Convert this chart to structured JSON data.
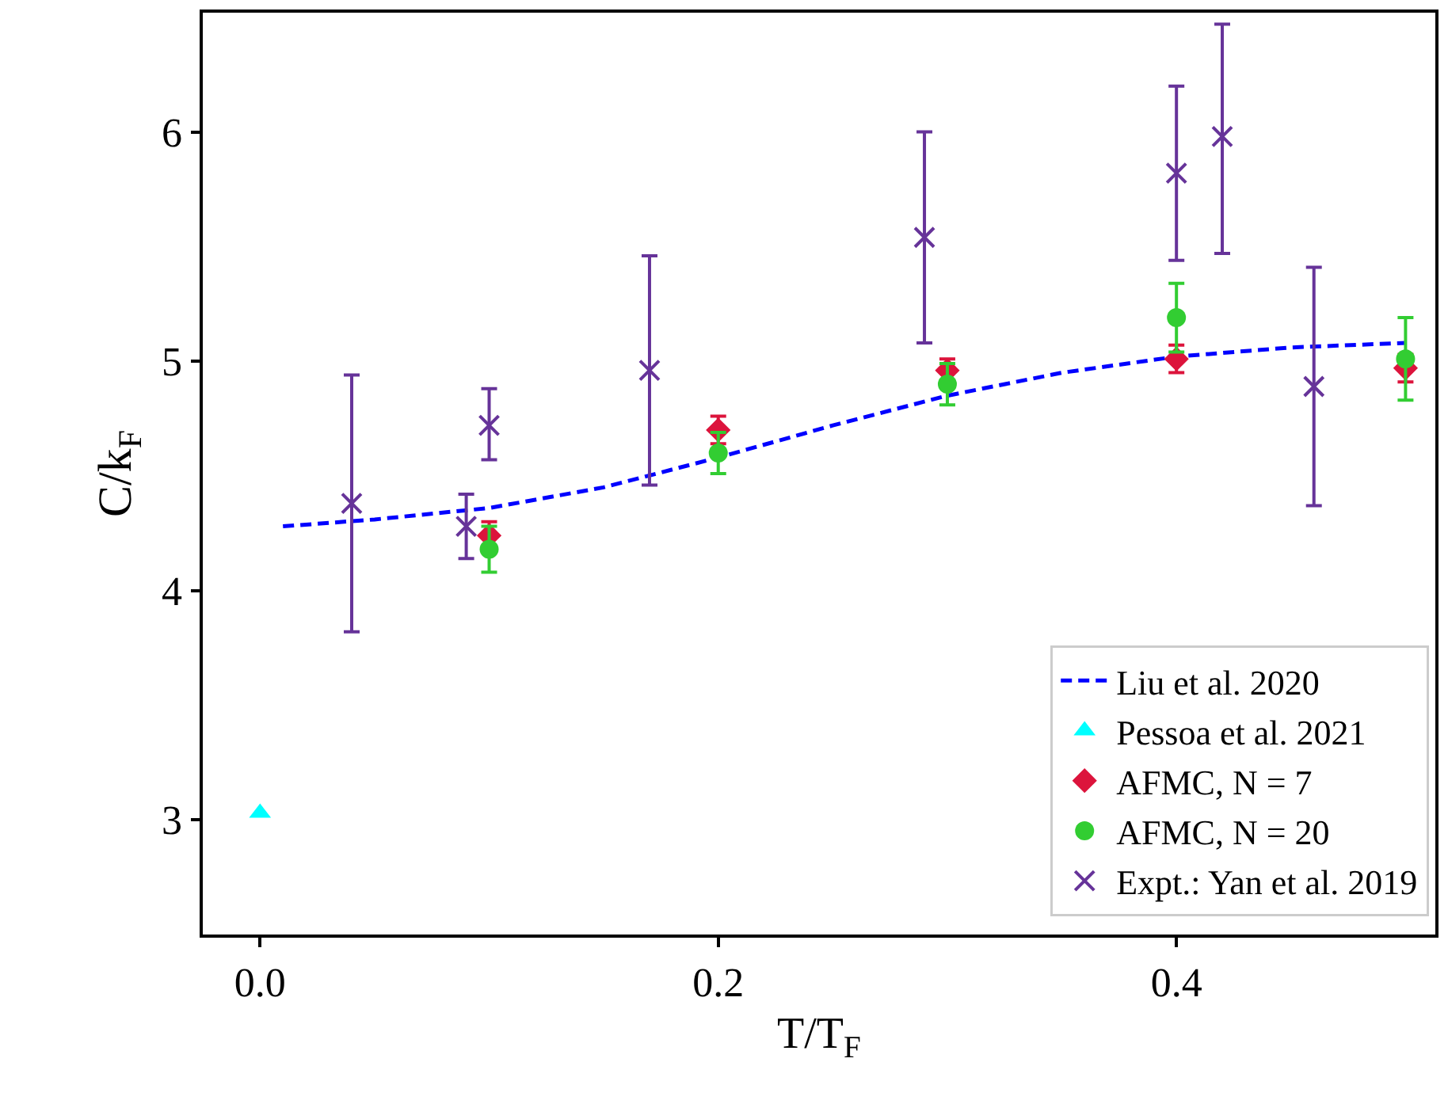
{
  "chart_data": {
    "type": "scatter",
    "xlabel": "T/T$_{F}$",
    "ylabel": "C/k$_{F}$",
    "xlim": [
      -0.025,
      0.513
    ],
    "ylim": [
      2.5,
      6.52
    ],
    "xticks": [
      {
        "value": 0.0,
        "label": "0.0"
      },
      {
        "value": 0.2,
        "label": "0.2"
      },
      {
        "value": 0.4,
        "label": "0.4"
      }
    ],
    "yticks": [
      3,
      4,
      5,
      6
    ],
    "legend": "bottom right",
    "series": [
      {
        "name": "Liu et al. 2020",
        "type": "line",
        "color": "#0000ff",
        "line_style": "dashed",
        "marker": "none",
        "x": [
          0.01,
          0.05,
          0.1,
          0.15,
          0.2,
          0.25,
          0.3,
          0.35,
          0.4,
          0.45,
          0.5
        ],
        "values": [
          4.28,
          4.31,
          4.36,
          4.45,
          4.58,
          4.72,
          4.85,
          4.95,
          5.02,
          5.06,
          5.08
        ]
      },
      {
        "name": "Pessoa et al. 2021",
        "color": "#00ffff",
        "marker": "triangle",
        "x": [
          0.0
        ],
        "values": [
          3.03
        ]
      },
      {
        "name": "AFMC, N = 7",
        "color": "#dc143c",
        "marker": "diamond",
        "x": [
          0.1,
          0.2,
          0.3,
          0.4,
          0.5
        ],
        "values": [
          4.24,
          4.7,
          4.96,
          5.01,
          4.97
        ],
        "errors": [
          0.06,
          0.06,
          0.05,
          0.06,
          0.06
        ]
      },
      {
        "name": "AFMC, N = 20",
        "color": "#32cd32",
        "marker": "circle",
        "x": [
          0.1,
          0.2,
          0.3,
          0.4,
          0.5
        ],
        "values": [
          4.18,
          4.6,
          4.9,
          5.19,
          5.01
        ],
        "errors": [
          0.1,
          0.09,
          0.09,
          0.15,
          0.18
        ]
      },
      {
        "name": "Expt.: Yan et al. 2019",
        "color": "#663399",
        "marker": "cross",
        "x": [
          0.04,
          0.09,
          0.1,
          0.17,
          0.29,
          0.4,
          0.42,
          0.46
        ],
        "values": [
          4.38,
          4.28,
          4.72,
          4.96,
          5.54,
          5.82,
          5.98,
          4.89
        ],
        "errors": [
          [
            3.82,
            4.94
          ],
          [
            4.14,
            4.42
          ],
          [
            4.57,
            4.88
          ],
          [
            4.46,
            5.46
          ],
          [
            5.08,
            6.0
          ],
          [
            5.44,
            6.2
          ],
          [
            5.47,
            6.47
          ],
          [
            4.37,
            5.41
          ]
        ]
      }
    ]
  }
}
